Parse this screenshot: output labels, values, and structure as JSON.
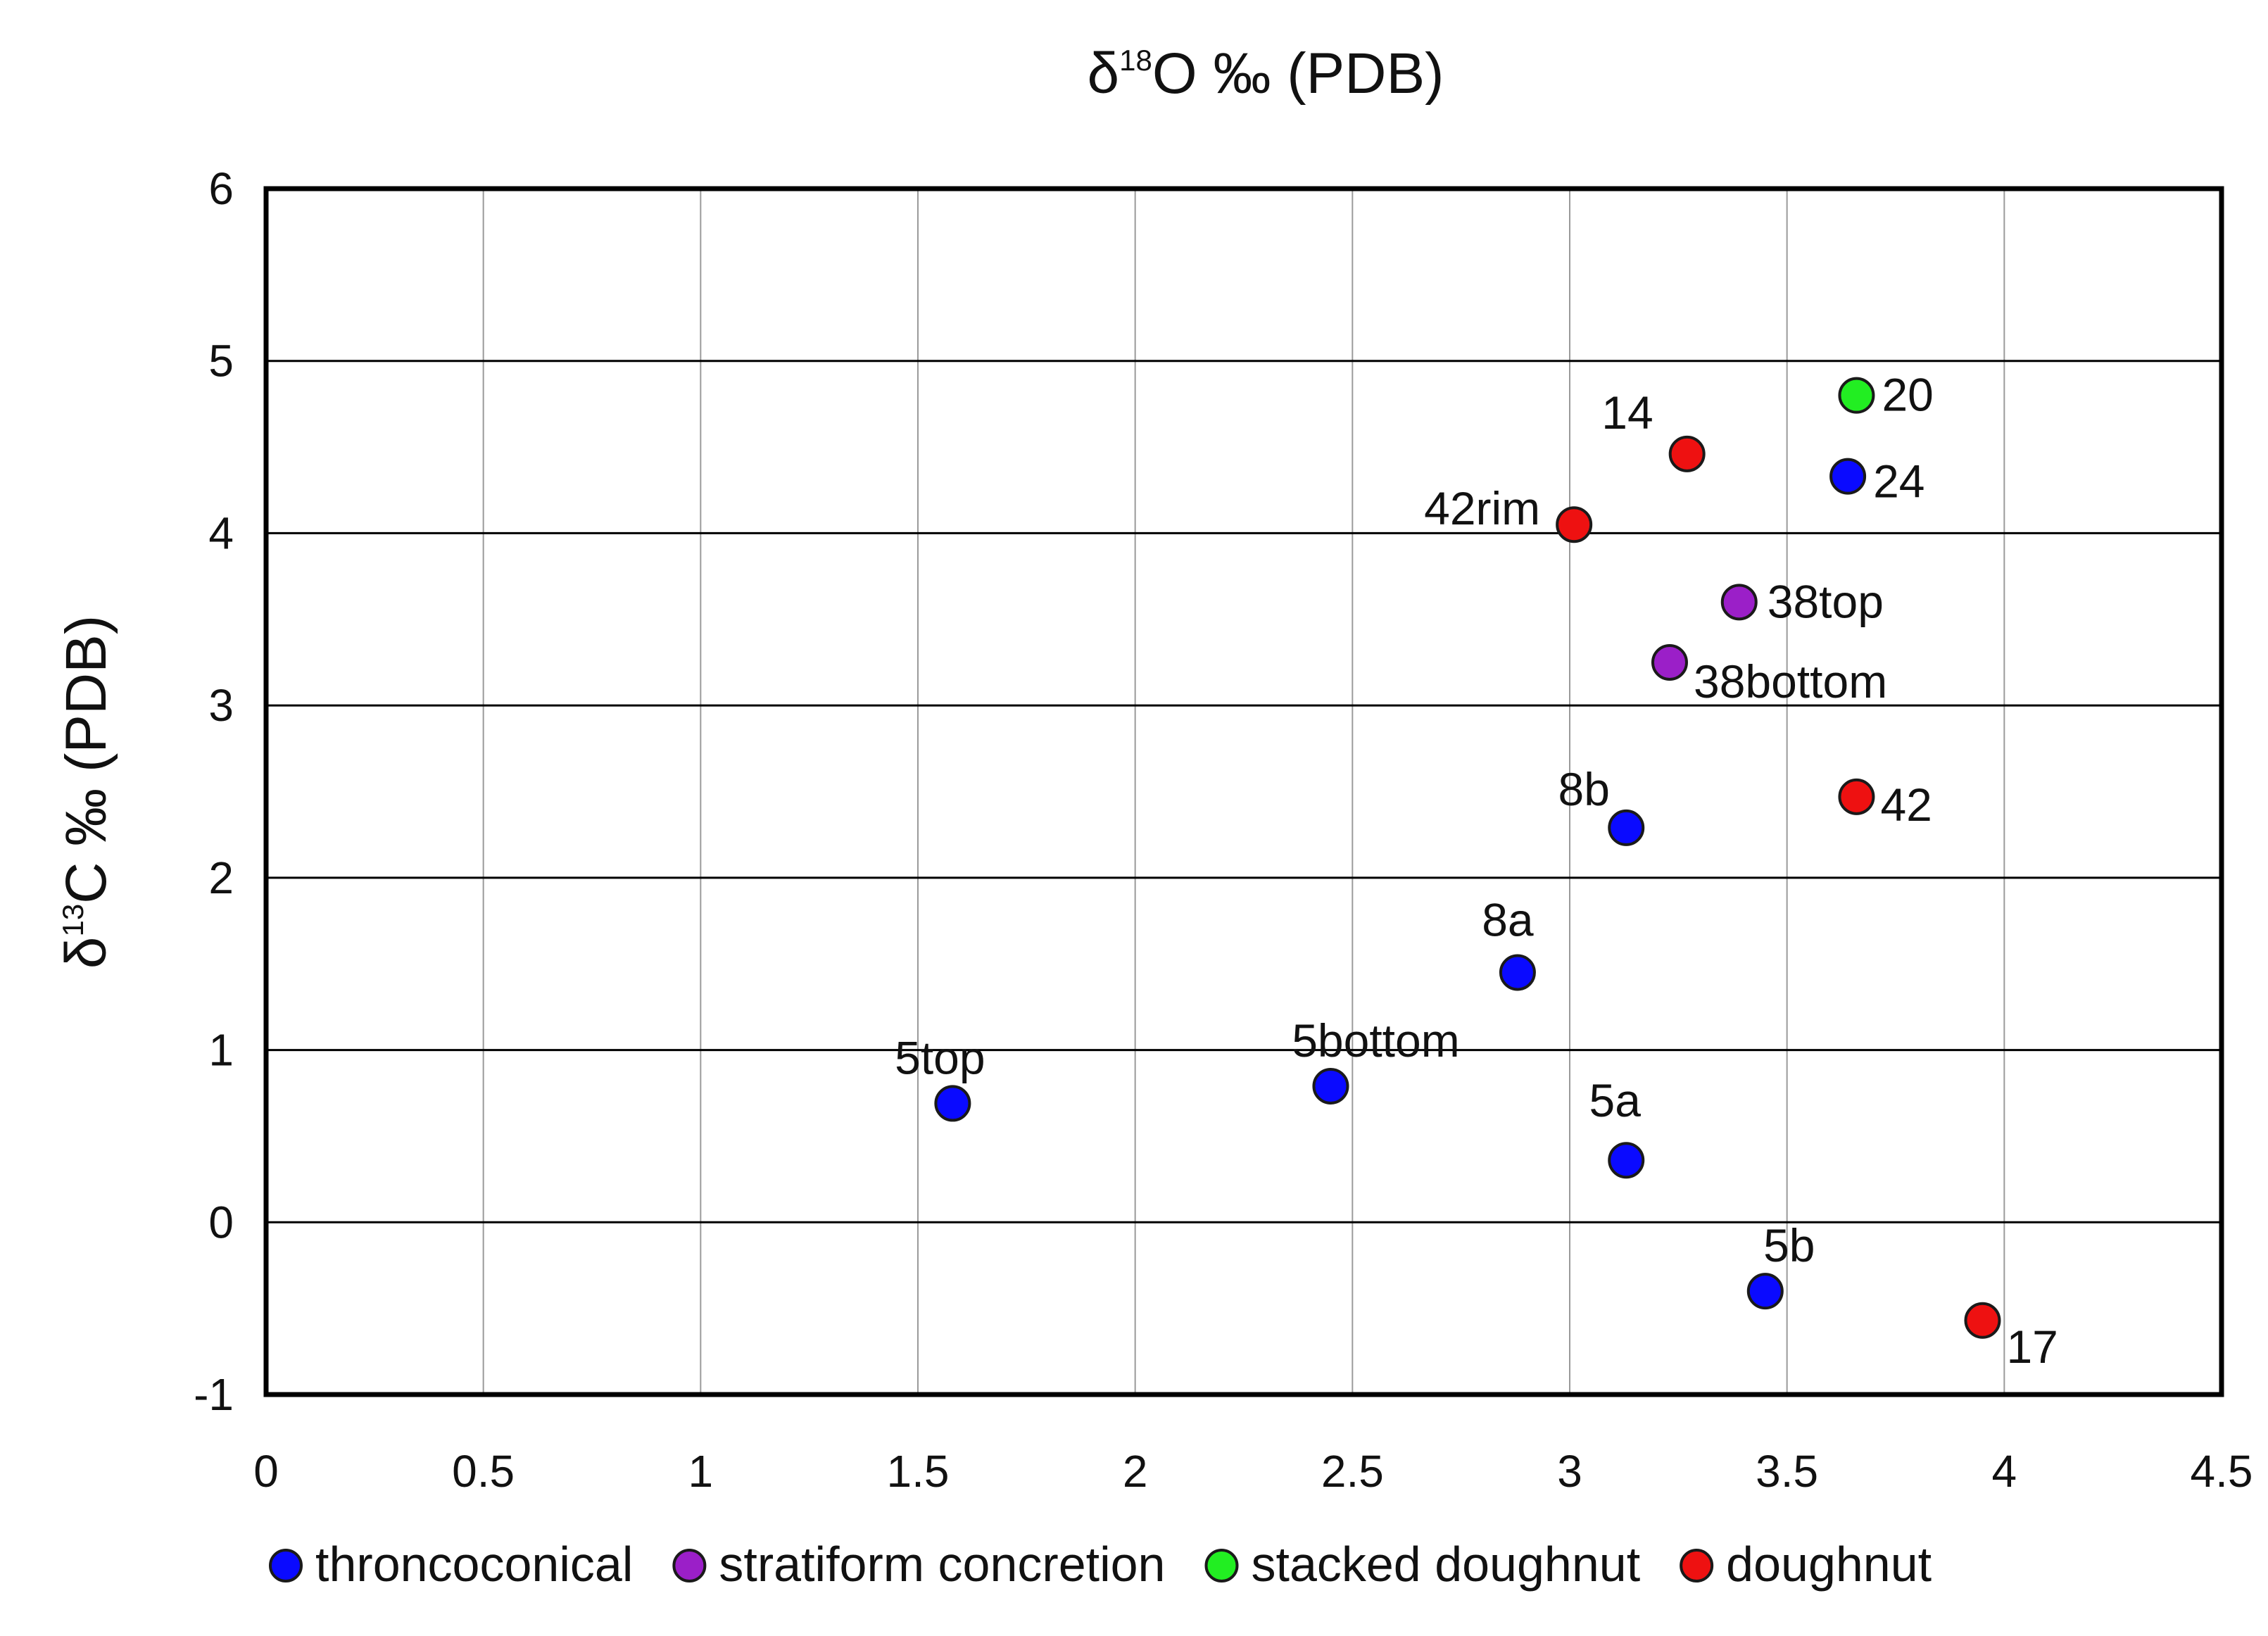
{
  "chart_data": {
    "type": "scatter",
    "title": "",
    "xlabel": {
      "prefix": "δ",
      "sup": "18",
      "rest": "O ‰ (PDB)"
    },
    "ylabel": {
      "prefix": "δ",
      "sup": "13",
      "rest": "C ‰ (PDB)"
    },
    "xlim": [
      0,
      4.5
    ],
    "ylim": [
      -1,
      6
    ],
    "xticks": [
      "0",
      "0.5",
      "1",
      "1.5",
      "2",
      "2.5",
      "3",
      "3.5",
      "4",
      "4.5"
    ],
    "yticks": [
      "6",
      "5",
      "4",
      "3",
      "2",
      "1",
      "0",
      "-1"
    ],
    "grid": true,
    "legend_position": "bottom",
    "series": [
      {
        "name": "throncoconical",
        "color": "#0a0aff",
        "points": [
          {
            "label": "5top",
            "x": 1.58,
            "y": 0.69
          },
          {
            "label": "5bottom",
            "x": 2.45,
            "y": 0.79
          },
          {
            "label": "8a",
            "x": 2.88,
            "y": 1.45
          },
          {
            "label": "8b",
            "x": 3.13,
            "y": 2.29
          },
          {
            "label": "5a",
            "x": 3.13,
            "y": 0.36
          },
          {
            "label": "5b",
            "x": 3.45,
            "y": -0.4
          },
          {
            "label": "24",
            "x": 3.64,
            "y": 4.33
          }
        ]
      },
      {
        "name": "stratiform concretion",
        "color": "#9b1fc8",
        "points": [
          {
            "label": "38top",
            "x": 3.39,
            "y": 3.6
          },
          {
            "label": "38bottom",
            "x": 3.23,
            "y": 3.25
          }
        ]
      },
      {
        "name": "stacked doughnut",
        "color": "#22ee22",
        "points": [
          {
            "label": "20",
            "x": 3.66,
            "y": 4.8
          }
        ]
      },
      {
        "name": "doughnut",
        "color": "#ee1111",
        "points": [
          {
            "label": "14",
            "x": 3.27,
            "y": 4.46
          },
          {
            "label": "42rim",
            "x": 3.01,
            "y": 4.05
          },
          {
            "label": "42",
            "x": 3.66,
            "y": 2.47
          },
          {
            "label": "17",
            "x": 3.95,
            "y": -0.57
          }
        ]
      }
    ]
  }
}
